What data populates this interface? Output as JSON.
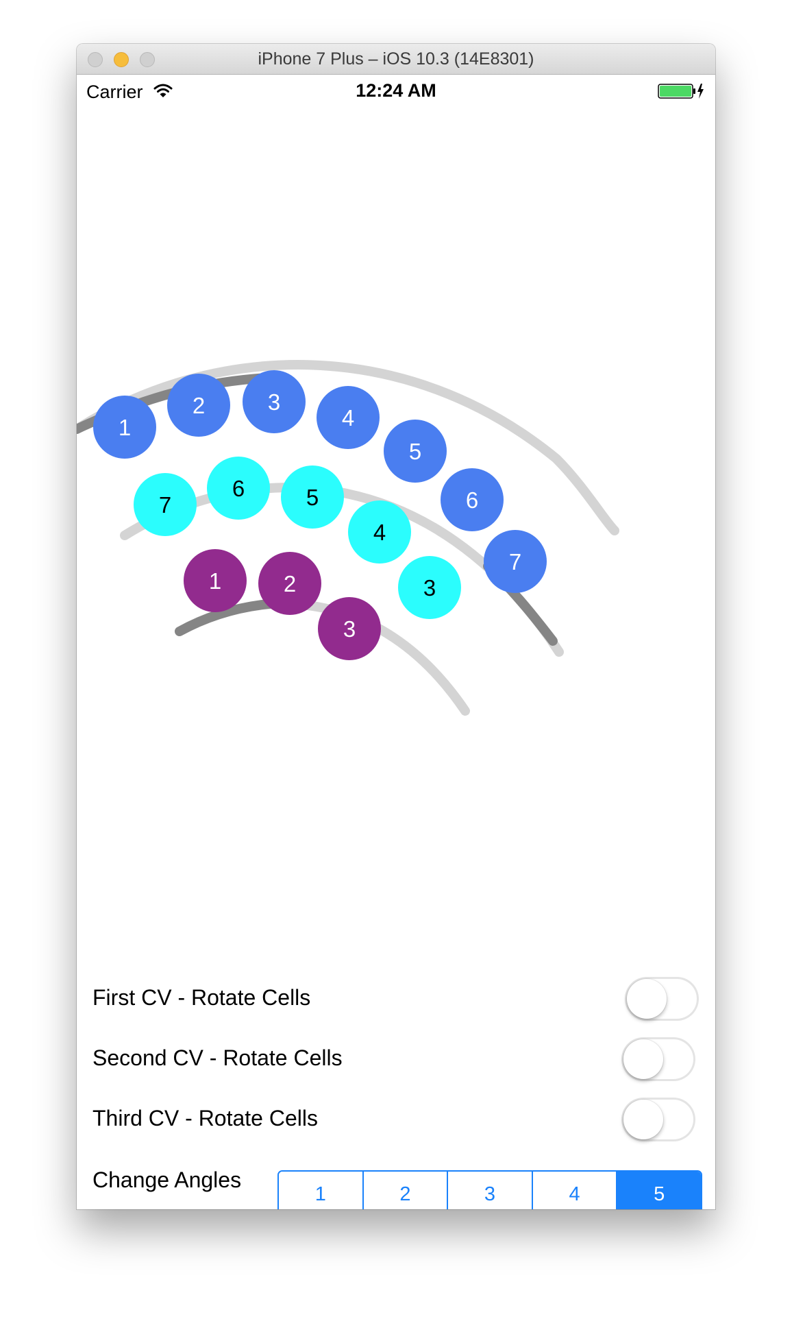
{
  "window": {
    "title": "iPhone 7 Plus – iOS 10.3 (14E8301)"
  },
  "status_bar": {
    "carrier": "Carrier",
    "time": "12:24 AM",
    "battery_color": "#4cd964"
  },
  "collection_views": {
    "first": {
      "color": "#4a7ef0",
      "text_color": "#ffffff",
      "cells": [
        "1",
        "2",
        "3",
        "4",
        "5",
        "6",
        "7"
      ]
    },
    "second": {
      "color": "#2bfdfd",
      "text_color": "#000000",
      "cells": [
        "7",
        "6",
        "5",
        "4",
        "3"
      ]
    },
    "third": {
      "color": "#922b8e",
      "text_color": "#ffffff",
      "cells": [
        "1",
        "2",
        "3"
      ]
    }
  },
  "settings": {
    "first_rotate": {
      "label": "First CV - Rotate Cells",
      "on": false
    },
    "second_rotate": {
      "label": "Second CV - Rotate Cells",
      "on": false
    },
    "third_rotate": {
      "label": "Third CV - Rotate Cells",
      "on": false
    },
    "change_angles": {
      "label": "Change Angles",
      "options": [
        "1",
        "2",
        "3",
        "4",
        "5"
      ],
      "selected": "5"
    }
  },
  "colors": {
    "accent": "#1a82fb",
    "track": "#d4d4d4",
    "track_indicator": "#858585"
  }
}
